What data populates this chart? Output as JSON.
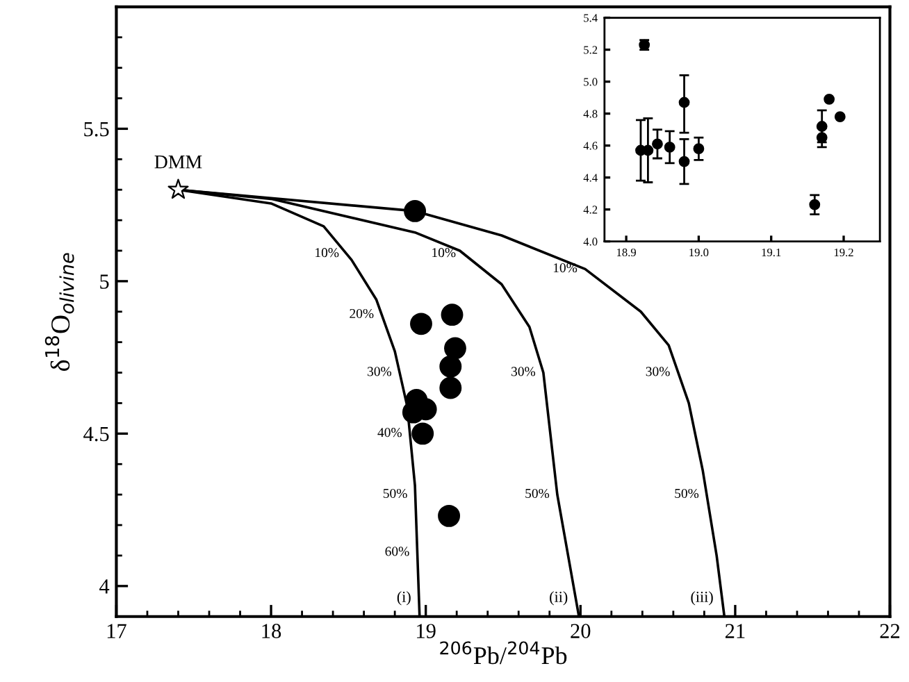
{
  "chart_data": [
    {
      "type": "scatter",
      "xlabel": "$^{206}$Pb/$^{204}$Pb",
      "ylabel": "δ$^{18}$O$_{olivine}$",
      "xlim": [
        17,
        22
      ],
      "ylim": [
        3.9,
        5.9
      ],
      "xticks": [
        17,
        {
          "value": 17.2,
          "label": null
        },
        {
          "value": 17.4,
          "label": null
        },
        {
          "value": 17.6,
          "label": null
        },
        {
          "value": 17.8,
          "label": null
        },
        18,
        {
          "value": 18.2,
          "label": null
        },
        {
          "value": 18.4,
          "label": null
        },
        {
          "value": 18.6,
          "label": null
        },
        {
          "value": 18.8,
          "label": null
        },
        19,
        {
          "value": 19.2,
          "label": null
        },
        {
          "value": 19.4,
          "label": null
        },
        {
          "value": 19.6,
          "label": null
        },
        {
          "value": 19.8,
          "label": null
        },
        20,
        {
          "value": 20.2,
          "label": null
        },
        {
          "value": 20.4,
          "label": null
        },
        {
          "value": 20.6,
          "label": null
        },
        {
          "value": 20.8,
          "label": null
        },
        21,
        {
          "value": 21.2,
          "label": null
        },
        {
          "value": 21.4,
          "label": null
        },
        {
          "value": 21.6,
          "label": null
        },
        {
          "value": 21.8,
          "label": null
        },
        22
      ],
      "yticks": [
        4,
        {
          "value": 4.1,
          "label": null
        },
        {
          "value": 4.2,
          "label": null
        },
        {
          "value": 4.3,
          "label": null
        },
        {
          "value": 4.4,
          "label": null
        },
        4.5,
        {
          "value": 4.6,
          "label": null
        },
        {
          "value": 4.7,
          "label": null
        },
        {
          "value": 4.8,
          "label": null
        },
        {
          "value": 4.9,
          "label": null
        },
        5,
        {
          "value": 5.1,
          "label": null
        },
        {
          "value": 5.2,
          "label": null
        },
        {
          "value": 5.3,
          "label": null
        },
        {
          "value": 5.4,
          "label": null
        },
        5.5,
        {
          "value": 5.6,
          "label": null
        },
        {
          "value": 5.7,
          "label": null
        },
        {
          "value": 5.8,
          "label": null
        }
      ],
      "series": [
        {
          "type": "line",
          "color": "#000000",
          "x": [
            17.4,
            18.0,
            18.34,
            18.52,
            18.68,
            18.8,
            18.88,
            18.93,
            18.96
          ],
          "values": [
            5.3,
            5.255,
            5.18,
            5.07,
            4.94,
            4.77,
            4.59,
            4.33,
            3.9
          ]
        },
        {
          "type": "line",
          "color": "#000000",
          "x": [
            17.4,
            18.0,
            18.93,
            19.22,
            19.49,
            19.67,
            19.76,
            19.85,
            19.99
          ],
          "values": [
            5.3,
            5.27,
            5.16,
            5.1,
            4.99,
            4.85,
            4.7,
            4.3,
            3.9
          ]
        },
        {
          "type": "line",
          "color": "#000000",
          "x": [
            17.4,
            18.93,
            19.49,
            20.03,
            20.39,
            20.57,
            20.7,
            20.79,
            20.88,
            20.93
          ],
          "values": [
            5.3,
            5.23,
            5.15,
            5.04,
            4.9,
            4.79,
            4.6,
            4.38,
            4.1,
            3.9
          ]
        },
        {
          "color": "#000000",
          "marker": "circle",
          "x": [
            18.93,
            18.97,
            19.17,
            19.19,
            19.16,
            19.16,
            18.92,
            19.0,
            18.94,
            18.98,
            19.15
          ],
          "values": [
            5.23,
            4.86,
            4.89,
            4.78,
            4.72,
            4.65,
            4.57,
            4.58,
            4.61,
            4.5,
            4.23
          ]
        },
        {
          "color": "#000000",
          "marker": "star",
          "x": [
            17.4
          ],
          "values": [
            5.3
          ]
        }
      ],
      "annotations": [
        {
          "text": "DMM",
          "x": 17.4,
          "y": 5.3
        },
        {
          "text": "10%",
          "x": 18.49,
          "y": 5.09
        },
        {
          "text": "10%",
          "x": 19.245,
          "y": 5.09
        },
        {
          "text": "10%",
          "x": 20.03,
          "y": 5.04
        },
        {
          "text": "20%",
          "x": 18.715,
          "y": 4.89
        },
        {
          "text": "30%",
          "x": 18.83,
          "y": 4.7
        },
        {
          "text": "30%",
          "x": 19.76,
          "y": 4.7
        },
        {
          "text": "30%",
          "x": 20.63,
          "y": 4.7
        },
        {
          "text": "40%",
          "x": 18.897,
          "y": 4.5
        },
        {
          "text": "50%",
          "x": 18.932,
          "y": 4.3
        },
        {
          "text": "50%",
          "x": 19.85,
          "y": 4.3
        },
        {
          "text": "50%",
          "x": 20.816,
          "y": 4.3
        },
        {
          "text": "60%",
          "x": 18.945,
          "y": 4.11
        },
        {
          "text": "(i)",
          "x": 18.956,
          "y": 3.96
        },
        {
          "text": "(ii)",
          "x": 19.969,
          "y": 3.96
        },
        {
          "text": "(iii)",
          "x": 20.91,
          "y": 3.96
        }
      ]
    },
    {
      "type": "scatter",
      "xlim": [
        18.87,
        19.25
      ],
      "ylim": [
        4.0,
        5.4
      ],
      "xticks": [
        {
          "value": 18.9,
          "label": "18.9"
        },
        {
          "value": 19.0,
          "label": "19.0"
        },
        {
          "value": 19.1,
          "label": "19.1"
        },
        {
          "value": 19.2,
          "label": "19.2"
        }
      ],
      "yticks": [
        {
          "value": 4.0,
          "label": "4.0"
        },
        {
          "value": 4.2,
          "label": "4.2"
        },
        {
          "value": 4.4,
          "label": "4.4"
        },
        {
          "value": 4.6,
          "label": "4.6"
        },
        {
          "value": 4.8,
          "label": "4.8"
        },
        {
          "value": 5.0,
          "label": "5.0"
        },
        {
          "value": 5.2,
          "label": "5.2"
        },
        {
          "value": 5.4,
          "label": "5.4"
        }
      ],
      "series": [
        {
          "color": "#000000",
          "marker": "circle",
          "x": [
            18.92,
            18.93,
            18.925,
            18.943,
            18.96,
            18.98,
            18.98,
            19.0,
            19.16,
            19.17,
            19.17,
            19.18,
            19.195
          ],
          "values": [
            4.57,
            4.57,
            5.23,
            4.61,
            4.59,
            4.87,
            4.5,
            4.58,
            4.23,
            4.72,
            4.65,
            4.89,
            4.78
          ],
          "errors": [
            [
              4.38,
              4.76
            ],
            [
              4.37,
              4.77
            ],
            0.03,
            0.09,
            0.1,
            [
              4.68,
              5.04
            ],
            [
              4.36,
              4.64
            ],
            0.07,
            0.06,
            0.1,
            0.06,
            null,
            null
          ]
        }
      ]
    }
  ]
}
